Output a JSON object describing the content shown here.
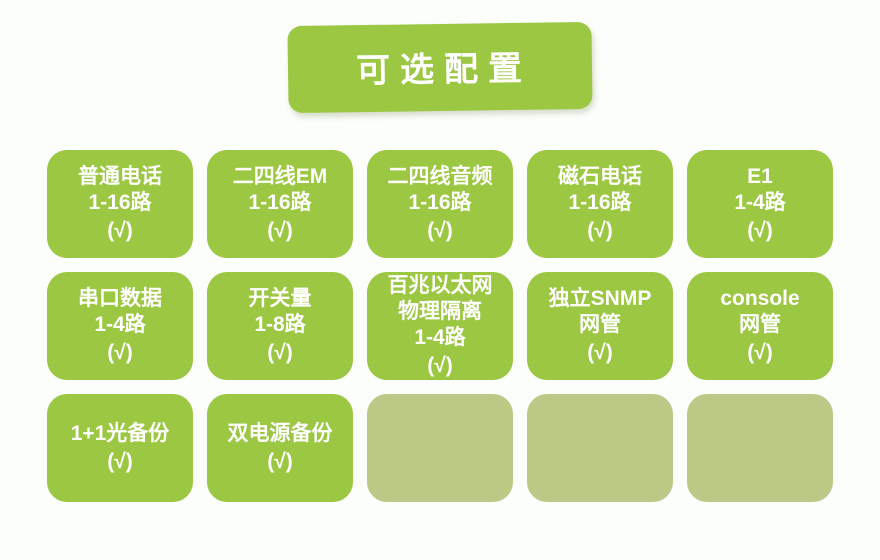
{
  "title": "可选配置",
  "colors": {
    "background": "#fcfefc",
    "card_filled": "#9cc742",
    "card_empty": "#bac986",
    "text": "#ffffff"
  },
  "layout": {
    "columns": 5,
    "rows": 3
  },
  "cards": [
    {
      "filled": true,
      "lines": [
        "普通电话",
        "1-16路"
      ],
      "check": "(√)"
    },
    {
      "filled": true,
      "lines": [
        "二四线EM",
        "1-16路"
      ],
      "check": "(√)"
    },
    {
      "filled": true,
      "lines": [
        "二四线音频",
        "1-16路"
      ],
      "check": "(√)"
    },
    {
      "filled": true,
      "lines": [
        "磁石电话",
        "1-16路"
      ],
      "check": "(√)"
    },
    {
      "filled": true,
      "lines": [
        "E1",
        "1-4路"
      ],
      "check": "(√)"
    },
    {
      "filled": true,
      "lines": [
        "串口数据",
        "1-4路"
      ],
      "check": "(√)"
    },
    {
      "filled": true,
      "lines": [
        "开关量",
        "1-8路"
      ],
      "check": "(√)"
    },
    {
      "filled": true,
      "lines": [
        "百兆以太网",
        "物理隔离",
        "1-4路"
      ],
      "check": "(√)"
    },
    {
      "filled": true,
      "lines": [
        "独立SNMP",
        "网管"
      ],
      "check": "(√)"
    },
    {
      "filled": true,
      "lines": [
        "console",
        "网管"
      ],
      "check": "(√)"
    },
    {
      "filled": true,
      "lines": [
        "1+1光备份"
      ],
      "check": "(√)"
    },
    {
      "filled": true,
      "lines": [
        "双电源备份"
      ],
      "check": "(√)"
    },
    {
      "filled": false,
      "lines": [],
      "check": ""
    },
    {
      "filled": false,
      "lines": [],
      "check": ""
    },
    {
      "filled": false,
      "lines": [],
      "check": ""
    }
  ]
}
